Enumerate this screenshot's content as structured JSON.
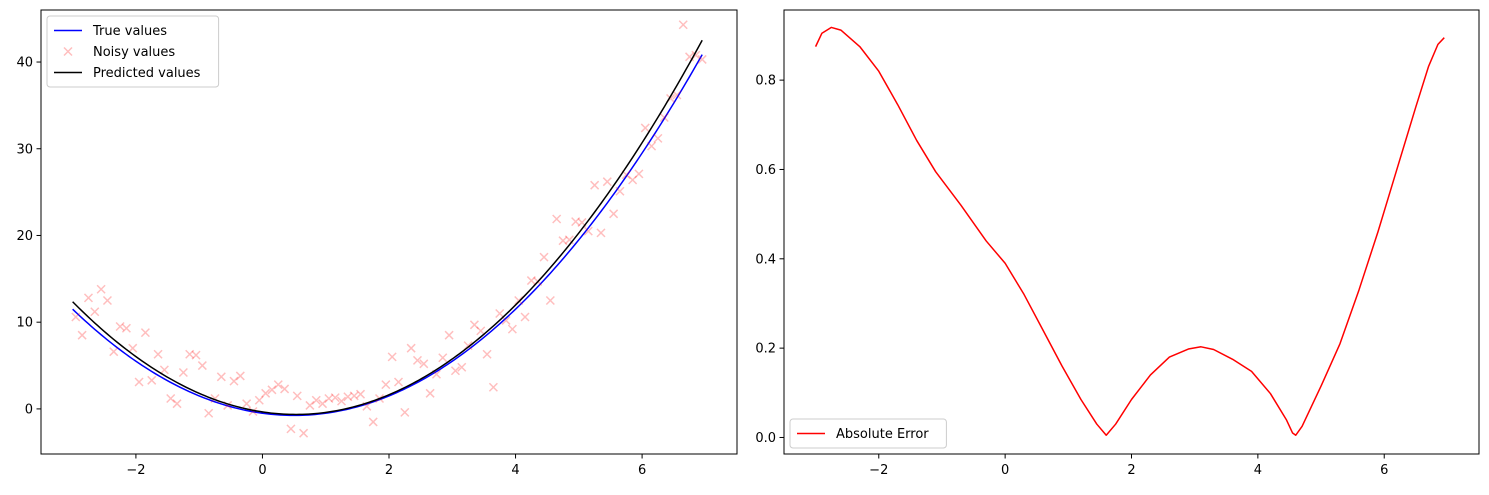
{
  "chart_data": [
    {
      "type": "line",
      "legend": {
        "placement": "top-left"
      },
      "xlim": [
        -3.5,
        7.5
      ],
      "ylim": [
        -5.2,
        46.0
      ],
      "xticks": [
        -2,
        0,
        2,
        4,
        6
      ],
      "yticks": [
        0,
        10,
        20,
        30,
        40
      ],
      "series": [
        {
          "name": "True values",
          "kind": "line",
          "color": "#0000ff",
          "function": "x^2 - x - 0.5",
          "x_range": [
            -3.0,
            6.95
          ]
        },
        {
          "name": "Noisy values",
          "kind": "scatter",
          "color": "#ff0000",
          "alpha": 0.25,
          "marker": "x",
          "points": [
            [
              -2.95,
              10.6
            ],
            [
              -2.85,
              8.5
            ],
            [
              -2.75,
              12.8
            ],
            [
              -2.65,
              11.2
            ],
            [
              -2.55,
              13.8
            ],
            [
              -2.45,
              12.5
            ],
            [
              -2.35,
              6.6
            ],
            [
              -2.25,
              9.5
            ],
            [
              -2.15,
              9.3
            ],
            [
              -2.05,
              7.0
            ],
            [
              -1.95,
              3.1
            ],
            [
              -1.85,
              8.8
            ],
            [
              -1.75,
              3.3
            ],
            [
              -1.65,
              6.3
            ],
            [
              -1.55,
              4.5
            ],
            [
              -1.45,
              1.2
            ],
            [
              -1.35,
              0.6
            ],
            [
              -1.25,
              4.2
            ],
            [
              -1.15,
              6.3
            ],
            [
              -1.05,
              6.2
            ],
            [
              -0.95,
              5.0
            ],
            [
              -0.85,
              -0.5
            ],
            [
              -0.75,
              1.2
            ],
            [
              -0.65,
              3.7
            ],
            [
              -0.55,
              0.4
            ],
            [
              -0.45,
              3.2
            ],
            [
              -0.35,
              3.8
            ],
            [
              -0.25,
              0.6
            ],
            [
              -0.15,
              -0.3
            ],
            [
              -0.05,
              1.0
            ],
            [
              0.05,
              1.8
            ],
            [
              0.15,
              2.2
            ],
            [
              0.25,
              2.8
            ],
            [
              0.35,
              2.3
            ],
            [
              0.45,
              -2.3
            ],
            [
              0.55,
              1.5
            ],
            [
              0.65,
              -2.8
            ],
            [
              0.75,
              0.4
            ],
            [
              0.85,
              1.0
            ],
            [
              0.95,
              0.6
            ],
            [
              1.05,
              1.2
            ],
            [
              1.15,
              1.3
            ],
            [
              1.25,
              0.9
            ],
            [
              1.35,
              1.4
            ],
            [
              1.45,
              1.5
            ],
            [
              1.55,
              1.7
            ],
            [
              1.65,
              0.3
            ],
            [
              1.75,
              -1.5
            ],
            [
              1.85,
              1.2
            ],
            [
              1.95,
              2.8
            ],
            [
              2.05,
              6.0
            ],
            [
              2.15,
              3.1
            ],
            [
              2.25,
              -0.4
            ],
            [
              2.35,
              7.0
            ],
            [
              2.45,
              5.6
            ],
            [
              2.55,
              5.2
            ],
            [
              2.65,
              1.8
            ],
            [
              2.75,
              4.0
            ],
            [
              2.85,
              5.9
            ],
            [
              2.95,
              8.5
            ],
            [
              3.05,
              4.4
            ],
            [
              3.15,
              4.8
            ],
            [
              3.25,
              7.3
            ],
            [
              3.35,
              9.7
            ],
            [
              3.45,
              9.0
            ],
            [
              3.55,
              6.3
            ],
            [
              3.65,
              2.5
            ],
            [
              3.75,
              11.0
            ],
            [
              3.85,
              10.2
            ],
            [
              3.95,
              9.2
            ],
            [
              4.05,
              12.5
            ],
            [
              4.15,
              10.6
            ],
            [
              4.25,
              14.8
            ],
            [
              4.35,
              14.7
            ],
            [
              4.45,
              17.5
            ],
            [
              4.55,
              12.5
            ],
            [
              4.65,
              21.9
            ],
            [
              4.75,
              19.4
            ],
            [
              4.85,
              19.5
            ],
            [
              4.95,
              21.6
            ],
            [
              5.05,
              21.5
            ],
            [
              5.15,
              20.5
            ],
            [
              5.25,
              25.8
            ],
            [
              5.35,
              20.3
            ],
            [
              5.45,
              26.2
            ],
            [
              5.55,
              22.5
            ],
            [
              5.65,
              25.1
            ],
            [
              5.75,
              27.0
            ],
            [
              5.85,
              26.4
            ],
            [
              5.95,
              27.1
            ],
            [
              6.05,
              32.4
            ],
            [
              6.15,
              30.3
            ],
            [
              6.25,
              31.2
            ],
            [
              6.35,
              33.6
            ],
            [
              6.45,
              35.8
            ],
            [
              6.55,
              36.2
            ],
            [
              6.65,
              44.3
            ],
            [
              6.75,
              40.6
            ],
            [
              6.85,
              40.8
            ],
            [
              6.95,
              40.3
            ]
          ]
        },
        {
          "name": "Predicted values",
          "kind": "line",
          "color": "#000000",
          "function": "1.0456x^2 - 1.1x - 0.35",
          "x_range": [
            -3.0,
            6.95
          ]
        }
      ]
    },
    {
      "type": "line",
      "legend": {
        "placement": "bottom-left"
      },
      "xlim": [
        -3.5,
        7.5
      ],
      "ylim": [
        -0.037,
        0.957
      ],
      "xticks": [
        -2,
        0,
        2,
        4,
        6
      ],
      "yticks": [
        0.0,
        0.2,
        0.4,
        0.6,
        0.8
      ],
      "series": [
        {
          "name": "Absolute Error",
          "kind": "line",
          "color": "#ff0000",
          "points": [
            [
              -3.0,
              0.875
            ],
            [
              -2.9,
              0.905
            ],
            [
              -2.75,
              0.918
            ],
            [
              -2.6,
              0.912
            ],
            [
              -2.3,
              0.875
            ],
            [
              -2.0,
              0.82
            ],
            [
              -1.7,
              0.745
            ],
            [
              -1.4,
              0.665
            ],
            [
              -1.1,
              0.595
            ],
            [
              -0.7,
              0.52
            ],
            [
              -0.3,
              0.44
            ],
            [
              0.0,
              0.39
            ],
            [
              0.3,
              0.32
            ],
            [
              0.6,
              0.24
            ],
            [
              0.9,
              0.16
            ],
            [
              1.2,
              0.085
            ],
            [
              1.45,
              0.03
            ],
            [
              1.6,
              0.005
            ],
            [
              1.75,
              0.03
            ],
            [
              2.0,
              0.085
            ],
            [
              2.3,
              0.14
            ],
            [
              2.6,
              0.18
            ],
            [
              2.9,
              0.198
            ],
            [
              3.1,
              0.203
            ],
            [
              3.3,
              0.197
            ],
            [
              3.6,
              0.175
            ],
            [
              3.9,
              0.148
            ],
            [
              4.2,
              0.098
            ],
            [
              4.45,
              0.04
            ],
            [
              4.55,
              0.01
            ],
            [
              4.6,
              0.005
            ],
            [
              4.7,
              0.025
            ],
            [
              5.0,
              0.115
            ],
            [
              5.3,
              0.21
            ],
            [
              5.6,
              0.33
            ],
            [
              5.9,
              0.46
            ],
            [
              6.2,
              0.6
            ],
            [
              6.5,
              0.74
            ],
            [
              6.7,
              0.83
            ],
            [
              6.85,
              0.88
            ],
            [
              6.95,
              0.895
            ]
          ]
        }
      ]
    }
  ]
}
